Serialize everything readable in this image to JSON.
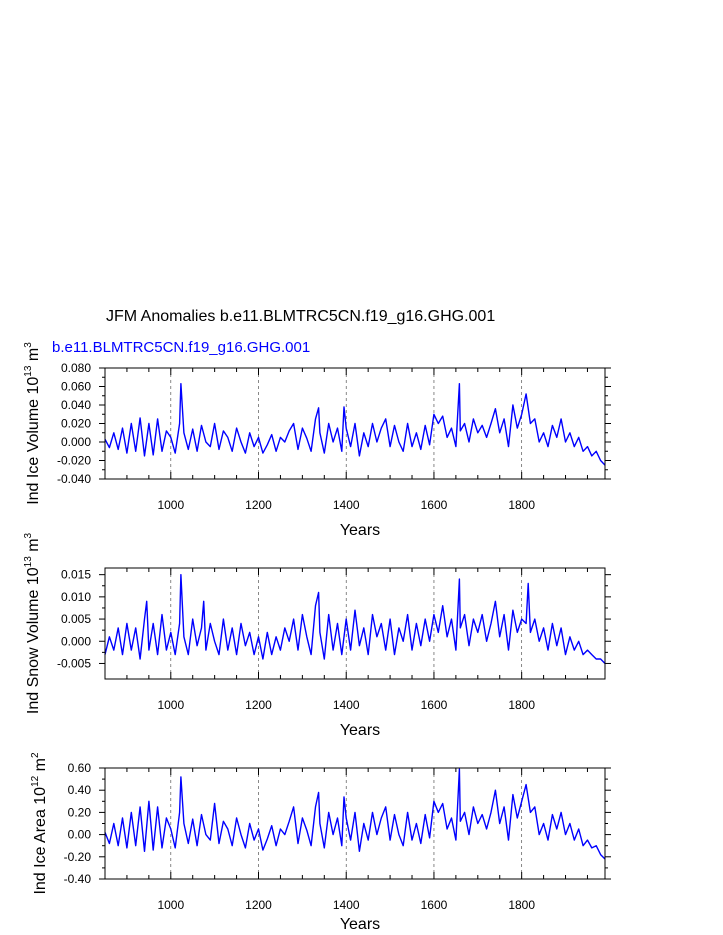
{
  "figure": {
    "title": "JFM Anomalies b.e11.BLMTRC5CN.f19_g16.GHG.001",
    "subtitle": "b.e11.BLMTRC5CN.f19_g16.GHG.001",
    "line_color": "#0000ff"
  },
  "chart_data": [
    {
      "type": "line",
      "ylabel": "Ind Ice Volume 10^13 m^3",
      "ylabel_parts": {
        "main": "Ind Ice Volume 10",
        "exp1": "13",
        "unit": "m",
        "exp2": "3"
      },
      "xlabel": "Years",
      "xlim": [
        850,
        1990
      ],
      "ylim": [
        -0.04,
        0.08
      ],
      "xticks": [
        1000,
        1200,
        1400,
        1600,
        1800
      ],
      "xtick_labels": [
        "1000",
        "1200",
        "1400",
        "1600",
        "1800"
      ],
      "yticks": [
        -0.04,
        -0.02,
        0.0,
        0.02,
        0.04,
        0.06,
        0.08
      ],
      "ytick_labels": [
        "-0.040",
        "-0.020",
        "0.000",
        "0.020",
        "0.040",
        "0.060",
        "0.080"
      ],
      "vgrid": [
        1000,
        1200,
        1400,
        1600,
        1800
      ],
      "series": [
        {
          "x": [
            850,
            860,
            870,
            880,
            890,
            900,
            910,
            920,
            930,
            940,
            950,
            960,
            970,
            980,
            990,
            1000,
            1010,
            1020,
            1023,
            1030,
            1040,
            1050,
            1060,
            1070,
            1080,
            1090,
            1100,
            1110,
            1120,
            1130,
            1140,
            1150,
            1160,
            1170,
            1180,
            1190,
            1200,
            1210,
            1220,
            1230,
            1240,
            1250,
            1260,
            1270,
            1280,
            1290,
            1300,
            1310,
            1320,
            1330,
            1337,
            1340,
            1350,
            1360,
            1370,
            1380,
            1390,
            1395,
            1400,
            1410,
            1420,
            1430,
            1440,
            1450,
            1460,
            1470,
            1480,
            1490,
            1500,
            1510,
            1520,
            1530,
            1540,
            1550,
            1560,
            1570,
            1580,
            1590,
            1600,
            1610,
            1620,
            1630,
            1640,
            1650,
            1658,
            1660,
            1670,
            1680,
            1690,
            1700,
            1710,
            1720,
            1730,
            1740,
            1750,
            1760,
            1770,
            1780,
            1790,
            1800,
            1810,
            1820,
            1830,
            1840,
            1850,
            1860,
            1870,
            1880,
            1890,
            1900,
            1910,
            1920,
            1930,
            1940,
            1950,
            1960,
            1970,
            1980,
            1990
          ],
          "y": [
            0.003,
            -0.006,
            0.01,
            -0.008,
            0.015,
            -0.012,
            0.02,
            -0.01,
            0.026,
            -0.015,
            0.02,
            -0.014,
            0.025,
            -0.01,
            0.012,
            0.005,
            -0.012,
            0.02,
            0.063,
            0.01,
            -0.008,
            0.014,
            -0.01,
            0.018,
            0.0,
            -0.005,
            0.02,
            -0.008,
            0.012,
            0.005,
            -0.01,
            0.015,
            0.0,
            -0.012,
            0.01,
            -0.005,
            0.005,
            -0.012,
            -0.003,
            0.008,
            -0.01,
            0.005,
            0.0,
            0.012,
            0.02,
            -0.008,
            0.015,
            0.004,
            -0.01,
            0.025,
            0.037,
            0.01,
            -0.012,
            0.02,
            0.0,
            0.015,
            -0.01,
            0.038,
            0.015,
            -0.005,
            0.02,
            -0.015,
            0.01,
            -0.005,
            0.02,
            0.0,
            0.015,
            0.025,
            -0.005,
            0.018,
            0.0,
            -0.01,
            0.02,
            -0.005,
            0.01,
            -0.008,
            0.018,
            -0.003,
            0.03,
            0.02,
            0.028,
            0.005,
            0.015,
            -0.005,
            0.063,
            0.012,
            0.02,
            0.0,
            0.025,
            0.01,
            0.018,
            0.005,
            0.02,
            0.036,
            0.01,
            0.025,
            -0.005,
            0.04,
            0.015,
            0.03,
            0.052,
            0.02,
            0.025,
            0.0,
            0.01,
            -0.005,
            0.018,
            0.005,
            0.025,
            0.0,
            0.01,
            -0.005,
            0.005,
            -0.01,
            -0.005,
            -0.015,
            -0.01,
            -0.02,
            -0.025
          ]
        }
      ]
    },
    {
      "type": "line",
      "ylabel": "Ind Snow Volume 10^13 m^3",
      "ylabel_parts": {
        "main": "Ind Snow Volume 10",
        "exp1": "13",
        "unit": "m",
        "exp2": "3"
      },
      "xlabel": "Years",
      "xlim": [
        850,
        1990
      ],
      "ylim": [
        -0.0085,
        0.0165
      ],
      "xticks": [
        1000,
        1200,
        1400,
        1600,
        1800
      ],
      "xtick_labels": [
        "1000",
        "1200",
        "1400",
        "1600",
        "1800"
      ],
      "yticks": [
        -0.005,
        0.0,
        0.005,
        0.01,
        0.015
      ],
      "ytick_labels": [
        "-0.005",
        "0.000",
        "0.005",
        "0.010",
        "0.015"
      ],
      "vgrid": [
        1000,
        1200,
        1400,
        1600,
        1800
      ],
      "series": [
        {
          "x": [
            850,
            860,
            870,
            880,
            890,
            900,
            910,
            920,
            930,
            940,
            945,
            950,
            960,
            970,
            980,
            990,
            1000,
            1010,
            1020,
            1023,
            1030,
            1040,
            1050,
            1060,
            1070,
            1075,
            1080,
            1090,
            1100,
            1110,
            1120,
            1130,
            1140,
            1150,
            1160,
            1170,
            1180,
            1190,
            1200,
            1210,
            1220,
            1230,
            1240,
            1250,
            1260,
            1270,
            1280,
            1290,
            1300,
            1310,
            1320,
            1330,
            1337,
            1340,
            1350,
            1360,
            1370,
            1380,
            1390,
            1400,
            1410,
            1420,
            1430,
            1440,
            1450,
            1460,
            1470,
            1480,
            1490,
            1500,
            1510,
            1520,
            1530,
            1540,
            1550,
            1560,
            1570,
            1580,
            1590,
            1600,
            1610,
            1620,
            1630,
            1640,
            1650,
            1658,
            1660,
            1670,
            1680,
            1690,
            1700,
            1710,
            1720,
            1730,
            1740,
            1750,
            1760,
            1770,
            1780,
            1790,
            1800,
            1810,
            1815,
            1820,
            1830,
            1840,
            1850,
            1860,
            1870,
            1880,
            1890,
            1900,
            1910,
            1920,
            1930,
            1940,
            1950,
            1960,
            1970,
            1980,
            1990
          ],
          "y": [
            -0.003,
            0.001,
            -0.002,
            0.003,
            -0.003,
            0.004,
            -0.002,
            0.003,
            -0.004,
            0.005,
            0.009,
            -0.002,
            0.004,
            -0.003,
            0.006,
            -0.002,
            0.002,
            -0.003,
            0.004,
            0.015,
            0.001,
            -0.003,
            0.005,
            -0.001,
            0.003,
            0.009,
            -0.002,
            0.004,
            0.0,
            -0.003,
            0.005,
            -0.002,
            0.003,
            -0.003,
            0.004,
            -0.001,
            0.002,
            -0.003,
            0.001,
            -0.004,
            0.002,
            -0.003,
            0.001,
            -0.002,
            0.003,
            0.0,
            0.005,
            -0.002,
            0.006,
            0.001,
            -0.003,
            0.008,
            0.011,
            0.002,
            -0.004,
            0.006,
            -0.002,
            0.004,
            -0.003,
            0.005,
            -0.002,
            0.007,
            -0.001,
            0.003,
            -0.003,
            0.006,
            0.001,
            0.004,
            -0.002,
            0.005,
            -0.003,
            0.003,
            0.0,
            0.006,
            -0.002,
            0.004,
            -0.001,
            0.005,
            0.0,
            0.006,
            0.002,
            0.008,
            0.001,
            0.005,
            -0.002,
            0.014,
            0.003,
            0.006,
            -0.001,
            0.005,
            0.002,
            0.006,
            0.0,
            0.004,
            0.009,
            0.001,
            0.006,
            -0.002,
            0.007,
            0.002,
            0.005,
            0.004,
            0.013,
            0.002,
            0.005,
            0.0,
            0.003,
            -0.002,
            0.004,
            -0.001,
            0.003,
            -0.003,
            0.001,
            -0.002,
            0.0,
            -0.003,
            -0.002,
            -0.003,
            -0.004,
            -0.004,
            -0.005
          ]
        }
      ]
    },
    {
      "type": "line",
      "ylabel": "Ind Ice Area 10^12 m^2",
      "ylabel_parts": {
        "main": "Ind Ice Area 10",
        "exp1": "12",
        "unit": "m",
        "exp2": "2"
      },
      "xlabel": "Years",
      "xlim": [
        850,
        1990
      ],
      "ylim": [
        -0.4,
        0.6
      ],
      "xticks": [
        1000,
        1200,
        1400,
        1600,
        1800
      ],
      "xtick_labels": [
        "1000",
        "1200",
        "1400",
        "1600",
        "1800"
      ],
      "yticks": [
        -0.4,
        -0.2,
        0.0,
        0.2,
        0.4,
        0.6
      ],
      "ytick_labels": [
        "-0.40",
        "-0.20",
        "0.00",
        "0.20",
        "0.40",
        "0.60"
      ],
      "vgrid": [
        1000,
        1200,
        1400,
        1600,
        1800
      ],
      "series": [
        {
          "x": [
            850,
            860,
            870,
            880,
            890,
            900,
            910,
            920,
            930,
            940,
            950,
            960,
            970,
            980,
            990,
            1000,
            1010,
            1020,
            1023,
            1030,
            1040,
            1050,
            1060,
            1070,
            1080,
            1090,
            1100,
            1110,
            1120,
            1130,
            1140,
            1150,
            1160,
            1170,
            1180,
            1190,
            1200,
            1210,
            1220,
            1230,
            1240,
            1250,
            1260,
            1270,
            1280,
            1290,
            1300,
            1310,
            1320,
            1330,
            1337,
            1340,
            1350,
            1360,
            1370,
            1380,
            1390,
            1395,
            1400,
            1410,
            1420,
            1430,
            1440,
            1450,
            1460,
            1470,
            1480,
            1490,
            1500,
            1510,
            1520,
            1530,
            1540,
            1550,
            1560,
            1570,
            1580,
            1590,
            1600,
            1610,
            1620,
            1630,
            1640,
            1650,
            1658,
            1660,
            1670,
            1680,
            1690,
            1700,
            1710,
            1720,
            1730,
            1740,
            1750,
            1760,
            1770,
            1780,
            1790,
            1800,
            1810,
            1820,
            1830,
            1840,
            1850,
            1860,
            1870,
            1880,
            1890,
            1900,
            1910,
            1920,
            1930,
            1940,
            1950,
            1960,
            1970,
            1980,
            1990
          ],
          "y": [
            0.02,
            -0.08,
            0.1,
            -0.1,
            0.15,
            -0.12,
            0.2,
            -0.1,
            0.25,
            -0.15,
            0.3,
            -0.14,
            0.25,
            -0.12,
            0.15,
            0.05,
            -0.12,
            0.2,
            0.52,
            0.1,
            -0.08,
            0.14,
            -0.1,
            0.18,
            0.0,
            -0.05,
            0.28,
            -0.08,
            0.12,
            0.05,
            -0.1,
            0.15,
            0.0,
            -0.12,
            0.1,
            -0.05,
            0.05,
            -0.14,
            -0.04,
            0.08,
            -0.1,
            0.05,
            0.0,
            0.12,
            0.25,
            -0.08,
            0.15,
            0.04,
            -0.1,
            0.25,
            0.38,
            0.1,
            -0.12,
            0.2,
            0.0,
            0.15,
            -0.1,
            0.34,
            0.15,
            -0.05,
            0.2,
            -0.15,
            0.1,
            -0.05,
            0.2,
            0.0,
            0.15,
            0.25,
            -0.05,
            0.18,
            0.0,
            -0.1,
            0.2,
            -0.05,
            0.1,
            -0.08,
            0.18,
            -0.03,
            0.3,
            0.2,
            0.28,
            0.05,
            0.15,
            -0.05,
            0.59,
            0.12,
            0.2,
            0.0,
            0.25,
            0.1,
            0.18,
            0.05,
            0.2,
            0.4,
            0.1,
            0.25,
            -0.05,
            0.36,
            0.15,
            0.3,
            0.45,
            0.2,
            0.25,
            0.0,
            0.1,
            -0.05,
            0.18,
            0.05,
            0.2,
            0.0,
            0.1,
            -0.05,
            0.05,
            -0.1,
            -0.05,
            -0.12,
            -0.1,
            -0.18,
            -0.22
          ]
        }
      ]
    }
  ]
}
